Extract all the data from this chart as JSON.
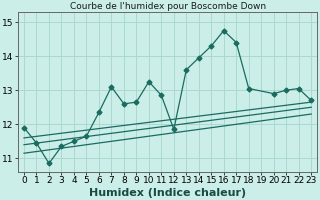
{
  "title": "Courbe de l'humidex pour Boscombe Down",
  "xlabel": "Humidex (Indice chaleur)",
  "bg_color": "#cceee8",
  "grid_color": "#aad8d0",
  "line_color": "#1a6b60",
  "xlim": [
    -0.5,
    23.5
  ],
  "ylim": [
    10.6,
    15.3
  ],
  "yticks": [
    11,
    12,
    13,
    14,
    15
  ],
  "xticks": [
    0,
    1,
    2,
    3,
    4,
    5,
    6,
    7,
    8,
    9,
    10,
    11,
    12,
    13,
    14,
    15,
    16,
    17,
    18,
    19,
    20,
    21,
    22,
    23
  ],
  "main_x": [
    0,
    1,
    2,
    3,
    4,
    5,
    6,
    7,
    8,
    9,
    10,
    11,
    12,
    13,
    14,
    15,
    16,
    17,
    18,
    20,
    21,
    22,
    23
  ],
  "main_y": [
    11.9,
    11.45,
    10.85,
    11.35,
    11.5,
    11.65,
    12.35,
    13.1,
    12.6,
    12.65,
    13.25,
    12.85,
    11.85,
    13.6,
    13.95,
    14.3,
    14.75,
    14.4,
    13.05,
    12.9,
    13.0,
    13.05,
    12.7
  ],
  "line1_x": [
    0,
    23
  ],
  "line1_y": [
    11.6,
    12.65
  ],
  "line2_x": [
    0,
    23
  ],
  "line2_y": [
    11.4,
    12.5
  ],
  "line3_x": [
    0,
    23
  ],
  "line3_y": [
    11.15,
    12.3
  ],
  "marker": "D",
  "markersize": 2.5,
  "linewidth": 0.9,
  "xlabel_fontsize": 8,
  "tick_fontsize": 6.5
}
